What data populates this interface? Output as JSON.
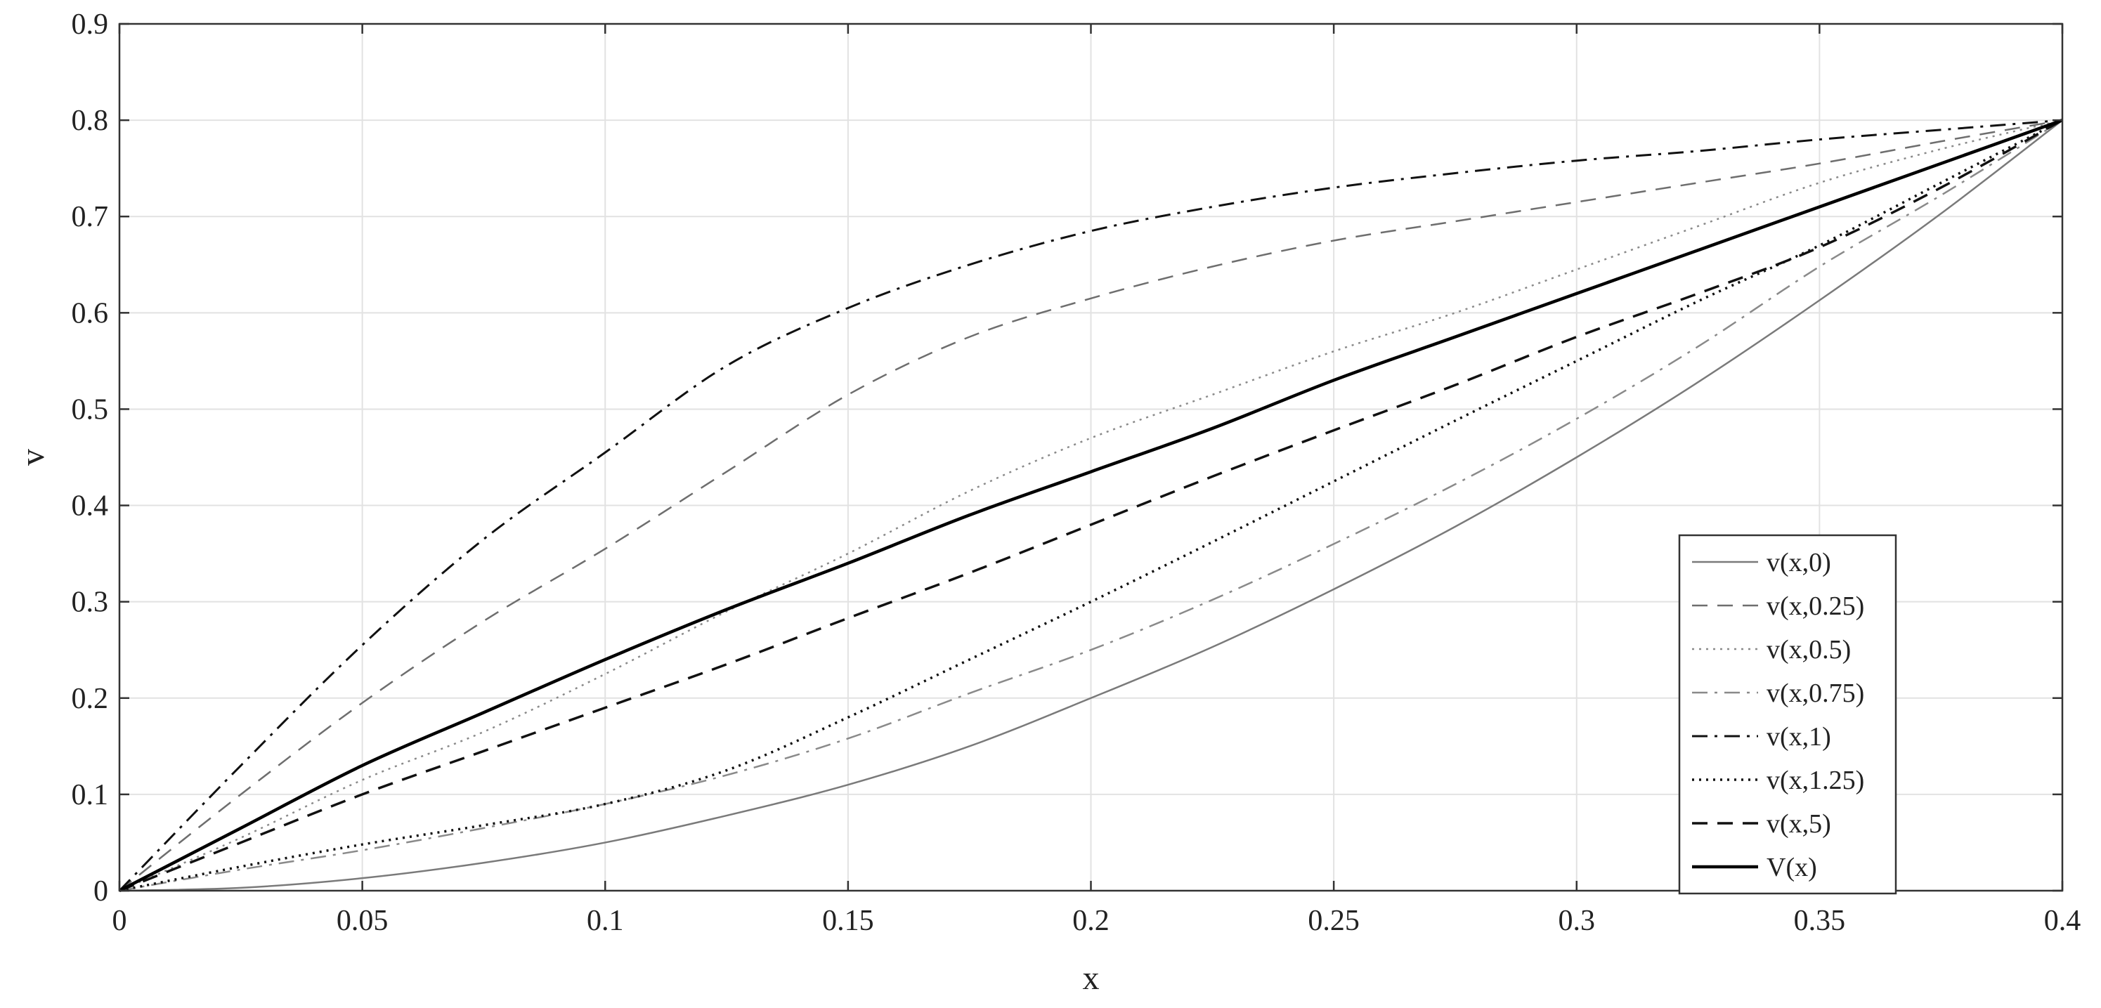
{
  "chart_data": {
    "type": "line",
    "title": "",
    "xlabel": "x",
    "ylabel": "v",
    "xlim": [
      0,
      0.4
    ],
    "ylim": [
      0,
      0.9
    ],
    "xticks": [
      0,
      0.05,
      0.1,
      0.15,
      0.2,
      0.25,
      0.3,
      0.35,
      0.4
    ],
    "xtick_labels": [
      "0",
      "0.05",
      "0.1",
      "0.15",
      "0.2",
      "0.25",
      "0.3",
      "0.35",
      "0.4"
    ],
    "yticks": [
      0,
      0.1,
      0.2,
      0.3,
      0.4,
      0.5,
      0.6,
      0.7,
      0.8,
      0.9
    ],
    "ytick_labels": [
      "0",
      "0.1",
      "0.2",
      "0.3",
      "0.4",
      "0.5",
      "0.6",
      "0.7",
      "0.8",
      "0.9"
    ],
    "grid": true,
    "legend_position": "bottom-right",
    "x": [
      0,
      0.025,
      0.05,
      0.075,
      0.1,
      0.125,
      0.15,
      0.175,
      0.2,
      0.225,
      0.25,
      0.275,
      0.3,
      0.325,
      0.35,
      0.375,
      0.4
    ],
    "series": [
      {
        "name": "v(x,0)",
        "color": "#7a7a7a",
        "dash": "solid",
        "width": 2.5,
        "values": [
          0,
          0.003,
          0.013,
          0.029,
          0.05,
          0.078,
          0.11,
          0.15,
          0.2,
          0.253,
          0.313,
          0.378,
          0.45,
          0.528,
          0.613,
          0.703,
          0.8
        ]
      },
      {
        "name": "v(x,0.25)",
        "color": "#6e6e6e",
        "dash": "dashed",
        "width": 2.5,
        "values": [
          0,
          0.1,
          0.195,
          0.28,
          0.355,
          0.435,
          0.515,
          0.575,
          0.615,
          0.648,
          0.675,
          0.695,
          0.715,
          0.735,
          0.755,
          0.778,
          0.8
        ]
      },
      {
        "name": "v(x,0.5)",
        "color": "#8a8a8a",
        "dash": "dotted",
        "width": 2.5,
        "values": [
          0,
          0.055,
          0.115,
          0.165,
          0.225,
          0.29,
          0.35,
          0.415,
          0.47,
          0.515,
          0.56,
          0.6,
          0.645,
          0.69,
          0.735,
          0.77,
          0.8
        ]
      },
      {
        "name": "v(x,0.75)",
        "color": "#8a8a8a",
        "dash": "dashdot",
        "width": 2.5,
        "values": [
          0,
          0.022,
          0.042,
          0.065,
          0.09,
          0.12,
          0.158,
          0.205,
          0.25,
          0.302,
          0.36,
          0.422,
          0.49,
          0.565,
          0.648,
          0.722,
          0.8
        ]
      },
      {
        "name": "v(x,1)",
        "color": "#111111",
        "dash": "dashdot",
        "width": 3,
        "values": [
          0,
          0.13,
          0.255,
          0.365,
          0.455,
          0.545,
          0.605,
          0.65,
          0.685,
          0.71,
          0.73,
          0.745,
          0.758,
          0.768,
          0.78,
          0.79,
          0.8
        ]
      },
      {
        "name": "v(x,1.25)",
        "color": "#111111",
        "dash": "dotted",
        "width": 3.5,
        "values": [
          0,
          0.025,
          0.048,
          0.068,
          0.09,
          0.125,
          0.18,
          0.24,
          0.3,
          0.362,
          0.425,
          0.488,
          0.55,
          0.612,
          0.67,
          0.735,
          0.8
        ]
      },
      {
        "name": "v(x,5)",
        "color": "#111111",
        "dash": "dashed",
        "width": 3.5,
        "values": [
          0,
          0.05,
          0.1,
          0.145,
          0.19,
          0.235,
          0.283,
          0.33,
          0.38,
          0.43,
          0.478,
          0.525,
          0.575,
          0.62,
          0.668,
          0.73,
          0.8
        ]
      },
      {
        "name": "V(x)",
        "color": "#000000",
        "dash": "solid",
        "width": 4.5,
        "values": [
          0,
          0.065,
          0.13,
          0.185,
          0.24,
          0.292,
          0.34,
          0.39,
          0.435,
          0.48,
          0.53,
          0.575,
          0.62,
          0.665,
          0.71,
          0.755,
          0.8
        ]
      }
    ]
  }
}
